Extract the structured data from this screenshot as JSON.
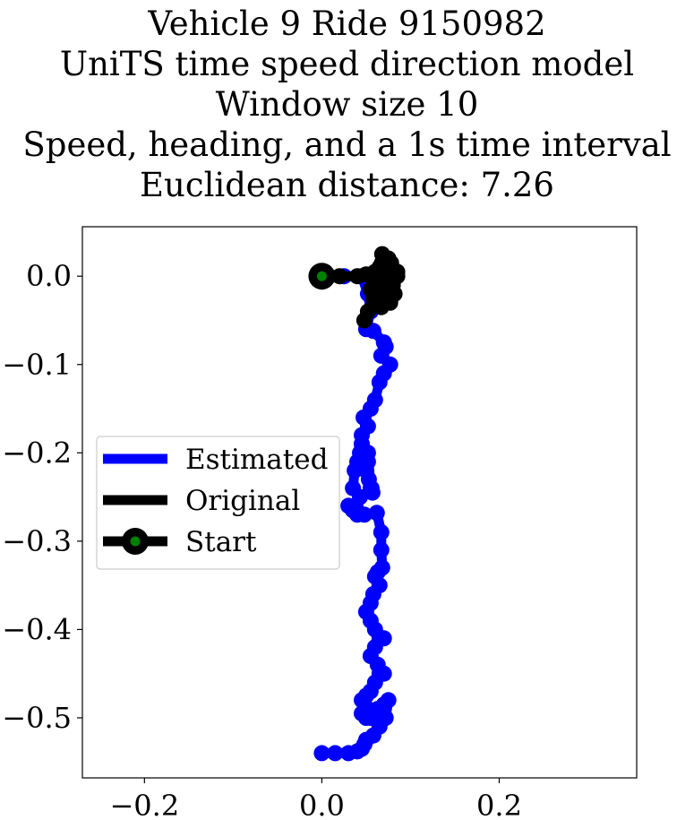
{
  "title_lines": [
    "Vehicle 9 Ride 9150982",
    "UniTS time speed direction model",
    "Window size 10",
    "Speed, heading, and a 1s time interval",
    "Euclidean distance: 7.26"
  ],
  "chart_data": {
    "type": "line",
    "title": "Vehicle 9 Ride 9150982 UniTS time speed direction model Window size 10 Speed, heading, and a 1s time interval Euclidean distance: 7.26",
    "xlabel": "",
    "ylabel": "",
    "xlim": [
      -0.27,
      0.355
    ],
    "ylim": [
      -0.568,
      0.056
    ],
    "grid": false,
    "x_ticks": [
      -0.2,
      0.0,
      0.2
    ],
    "x_tick_labels": [
      "−0.2",
      "0.0",
      "0.2"
    ],
    "y_ticks": [
      0.0,
      -0.1,
      -0.2,
      -0.3,
      -0.4,
      -0.5
    ],
    "y_tick_labels": [
      "0.0",
      "−0.1",
      "−0.2",
      "−0.3",
      "−0.4",
      "−0.5"
    ],
    "legend_position": "center-left",
    "series": [
      {
        "name": "Estimated",
        "color": "#0000ff",
        "marker": "circle",
        "x": [
          0.0,
          0.008,
          0.025,
          0.045,
          0.052,
          0.055,
          0.05,
          0.058,
          0.07,
          0.072,
          0.067,
          0.077,
          0.07,
          0.065,
          0.06,
          0.055,
          0.047,
          0.052,
          0.045,
          0.045,
          0.05,
          0.052,
          0.05,
          0.053,
          0.056,
          0.057,
          0.055,
          0.052,
          0.045,
          0.043,
          0.04,
          0.037,
          0.035,
          0.043,
          0.038,
          0.035,
          0.03,
          0.035,
          0.04,
          0.048,
          0.062,
          0.067,
          0.067,
          0.068,
          0.063,
          0.06,
          0.065,
          0.058,
          0.055,
          0.05,
          0.055,
          0.06,
          0.065,
          0.07,
          0.06,
          0.055,
          0.063,
          0.07,
          0.065,
          0.06,
          0.055,
          0.05,
          0.045,
          0.05,
          0.052,
          0.045,
          0.05,
          0.055,
          0.063,
          0.07,
          0.075,
          0.072,
          0.065,
          0.058,
          0.05,
          0.048,
          0.045,
          0.04,
          0.03,
          0.015,
          0.0
        ],
        "y": [
          0.0,
          0.0,
          0.0,
          0.0,
          -0.02,
          -0.04,
          -0.06,
          -0.062,
          -0.075,
          -0.08,
          -0.09,
          -0.1,
          -0.11,
          -0.12,
          -0.14,
          -0.15,
          -0.16,
          -0.17,
          -0.18,
          -0.19,
          -0.2,
          -0.21,
          -0.22,
          -0.23,
          -0.24,
          -0.245,
          -0.24,
          -0.2,
          -0.19,
          -0.2,
          -0.21,
          -0.22,
          -0.24,
          -0.25,
          -0.26,
          -0.262,
          -0.26,
          -0.265,
          -0.27,
          -0.27,
          -0.268,
          -0.29,
          -0.31,
          -0.33,
          -0.335,
          -0.34,
          -0.35,
          -0.36,
          -0.37,
          -0.38,
          -0.39,
          -0.4,
          -0.41,
          -0.41,
          -0.42,
          -0.43,
          -0.44,
          -0.45,
          -0.45,
          -0.46,
          -0.47,
          -0.475,
          -0.48,
          -0.49,
          -0.49,
          -0.495,
          -0.5,
          -0.5,
          -0.49,
          -0.485,
          -0.48,
          -0.5,
          -0.51,
          -0.52,
          -0.525,
          -0.53,
          -0.535,
          -0.538,
          -0.54,
          -0.54,
          -0.54
        ]
      },
      {
        "name": "Original",
        "color": "#000000",
        "marker": "circle",
        "x": [
          0.0,
          0.02,
          0.04,
          0.05,
          0.06,
          0.07,
          0.08,
          0.085,
          0.075,
          0.065,
          0.06,
          0.07,
          0.08,
          0.085,
          0.078,
          0.068,
          0.06,
          0.055,
          0.065,
          0.075,
          0.08,
          0.072,
          0.062,
          0.058,
          0.067,
          0.077,
          0.082,
          0.07,
          0.06,
          0.052,
          0.048
        ],
        "y": [
          0.0,
          0.0,
          0.0,
          0.002,
          -0.005,
          -0.015,
          -0.01,
          0.005,
          0.02,
          0.01,
          -0.02,
          -0.025,
          -0.01,
          0.0,
          0.015,
          0.025,
          0.005,
          -0.015,
          -0.03,
          -0.02,
          -0.005,
          0.005,
          -0.005,
          -0.025,
          -0.035,
          -0.03,
          -0.02,
          -0.01,
          -0.02,
          -0.04,
          -0.05
        ]
      },
      {
        "name": "Start",
        "color": "#000000",
        "marker_face_color": "#008000",
        "marker": "circle",
        "x": [
          0.0
        ],
        "y": [
          0.0
        ]
      }
    ]
  }
}
